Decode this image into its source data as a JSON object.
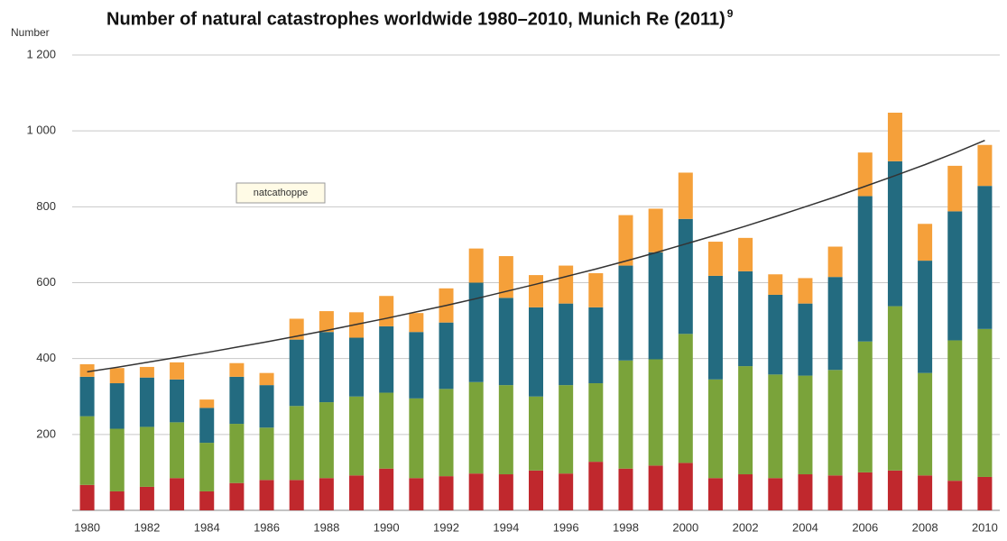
{
  "chart_data": {
    "type": "bar",
    "title": "Number of natural catastrophes worldwide 1980–2010, Munich Re (2011)",
    "title_note": "9",
    "y_label": "Number",
    "annotation": "natcathoppe",
    "stacked": true,
    "grid": true,
    "categories": [
      "1980",
      null,
      "1982",
      null,
      "1984",
      null,
      "1986",
      null,
      "1988",
      null,
      "1990",
      null,
      "1992",
      null,
      "1994",
      null,
      "1996",
      null,
      "1998",
      null,
      "2000",
      null,
      "2002",
      null,
      "2004",
      null,
      "2006",
      null,
      "2008",
      null,
      "2010"
    ],
    "series": [
      {
        "color": "#c0282d",
        "values": [
          67,
          50,
          62,
          85,
          50,
          72,
          80,
          80,
          85,
          92,
          110,
          85,
          90,
          97,
          95,
          105,
          97,
          128,
          110,
          118,
          125,
          85,
          95,
          85,
          95,
          92,
          100,
          105,
          92,
          78,
          88
        ]
      },
      {
        "color": "#7aa33a",
        "values": [
          181,
          165,
          158,
          147,
          128,
          156,
          138,
          195,
          200,
          208,
          200,
          210,
          230,
          241,
          235,
          195,
          233,
          207,
          285,
          280,
          340,
          260,
          285,
          273,
          260,
          278,
          345,
          433,
          270,
          370,
          390
        ]
      },
      {
        "color": "#236b80",
        "values": [
          104,
          120,
          130,
          113,
          92,
          124,
          112,
          175,
          185,
          155,
          175,
          175,
          175,
          262,
          230,
          235,
          215,
          200,
          250,
          282,
          303,
          273,
          250,
          210,
          190,
          245,
          383,
          382,
          296,
          340,
          377
        ]
      },
      {
        "color": "#f5a03a",
        "values": [
          33,
          40,
          28,
          45,
          22,
          36,
          32,
          55,
          55,
          67,
          80,
          50,
          90,
          90,
          110,
          85,
          100,
          90,
          133,
          115,
          122,
          90,
          88,
          54,
          67,
          80,
          115,
          128,
          97,
          120,
          108
        ]
      }
    ],
    "trend": {
      "color": "#333333",
      "values": [
        365,
        377,
        390,
        403,
        416,
        430,
        444,
        459,
        474,
        490,
        506,
        523,
        540,
        558,
        577,
        596,
        616,
        636,
        657,
        679,
        702,
        725,
        749,
        774,
        800,
        826,
        854,
        882,
        911,
        942,
        975
      ]
    },
    "ylim": [
      0,
      1200
    ],
    "yticks": [
      {
        "value": 0,
        "label": ""
      },
      200,
      400,
      600,
      800,
      {
        "value": 1000,
        "label": "1 000"
      },
      {
        "value": 1200,
        "label": "1 200"
      }
    ]
  }
}
